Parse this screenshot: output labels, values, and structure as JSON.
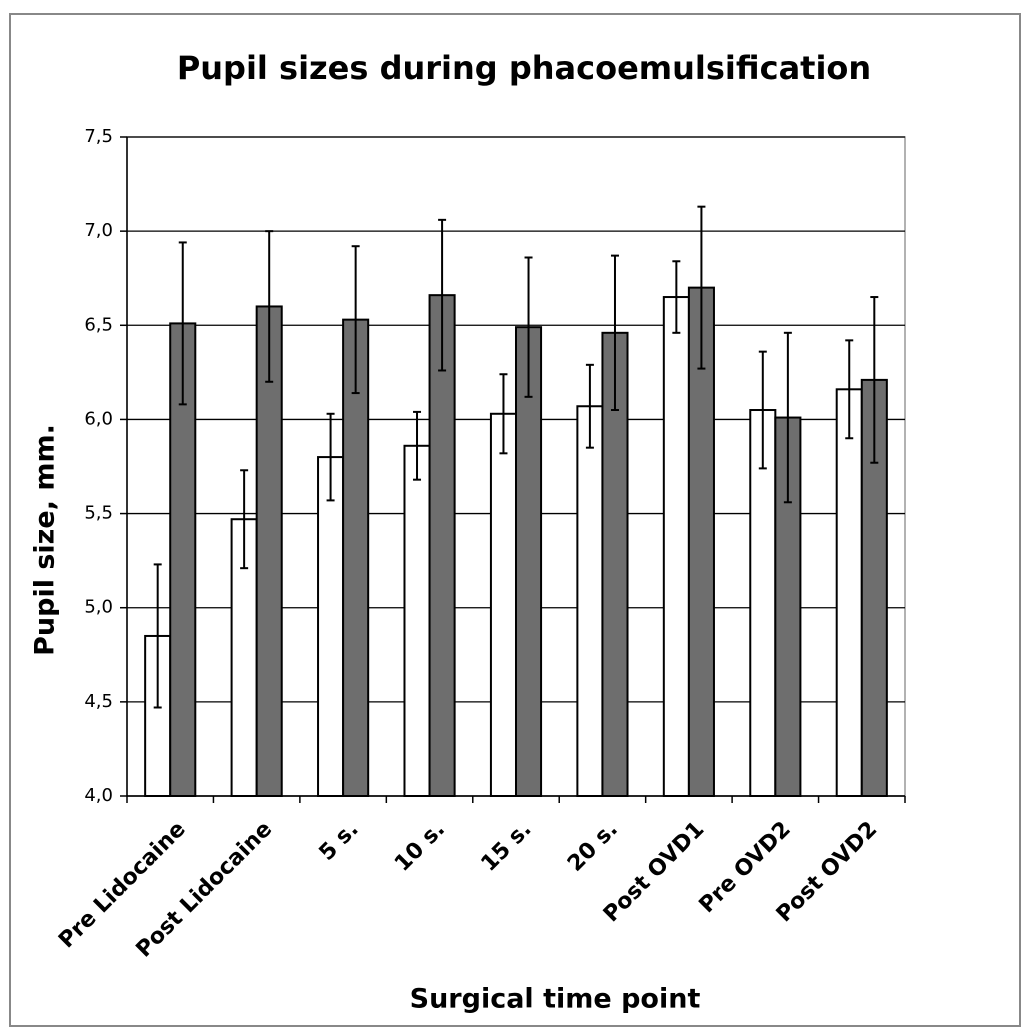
{
  "chart_data": {
    "type": "bar",
    "title": "Pupil sizes during phacoemulsification",
    "x_label": "Surgical time point",
    "y_label": "Pupil size, mm.",
    "categories": [
      "Pre Lidocaine",
      "Post Lidocaine",
      "5 s.",
      "10 s.",
      "15 s.",
      "20 s.",
      "Post OVD1",
      "Pre OVD2",
      "Post OVD2"
    ],
    "series": [
      {
        "color": "#ffffff",
        "values": [
          4.85,
          5.47,
          5.8,
          5.86,
          6.03,
          6.07,
          6.65,
          6.05,
          6.16
        ],
        "errors": [
          0.38,
          0.26,
          0.23,
          0.18,
          0.21,
          0.22,
          0.19,
          0.31,
          0.26
        ]
      },
      {
        "color": "#6e6e6e",
        "values": [
          6.51,
          6.6,
          6.53,
          6.66,
          6.49,
          6.46,
          6.7,
          6.01,
          6.21
        ],
        "errors": [
          0.43,
          0.4,
          0.39,
          0.4,
          0.37,
          0.41,
          0.43,
          0.45,
          0.44
        ]
      }
    ],
    "ylim": [
      4.0,
      7.5
    ],
    "yticks": [
      {
        "value": 4.0,
        "label": "4,0"
      },
      {
        "value": 4.5,
        "label": "4,5"
      },
      {
        "value": 5.0,
        "label": "5,0"
      },
      {
        "value": 5.5,
        "label": "5,5"
      },
      {
        "value": 6.0,
        "label": "6,0"
      },
      {
        "value": 6.5,
        "label": "6,5"
      },
      {
        "value": 7.0,
        "label": "7,0"
      },
      {
        "value": 7.5,
        "label": "7,5"
      }
    ],
    "grid": true
  }
}
